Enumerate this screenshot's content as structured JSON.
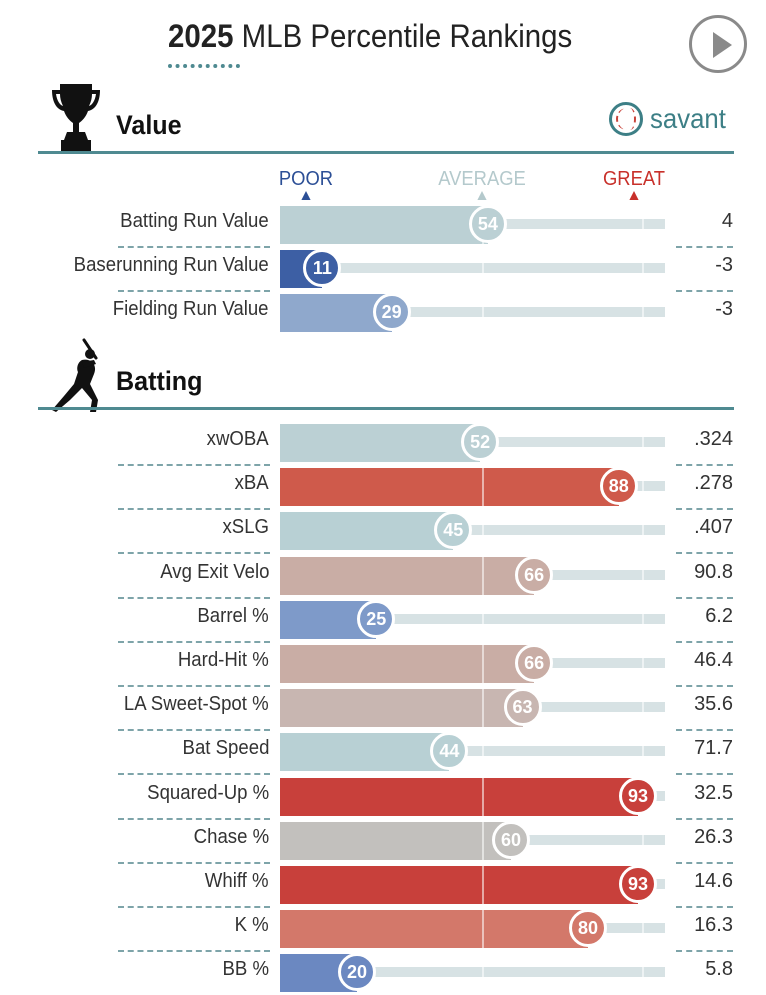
{
  "header": {
    "title_year": "2025",
    "title_rest": " MLB Percentile Rankings",
    "play_button": "play-icon"
  },
  "sections": {
    "value": {
      "title": "Value",
      "icon": "trophy-icon"
    },
    "batting": {
      "title": "Batting",
      "icon": "batter-icon"
    }
  },
  "brand": {
    "text": "savant",
    "icon": "baseball-icon",
    "color": "#3d7f86"
  },
  "scale": {
    "poor": "POOR",
    "average": "AVERAGE",
    "great": "GREAT"
  },
  "colors": {
    "accent": "#4f8a91",
    "poor": "#2c4f96",
    "great": "#c8302a",
    "track": "#d7e2e4"
  },
  "chart_data": {
    "type": "bar",
    "xlim": [
      0,
      100
    ],
    "series": [
      {
        "group": "Value",
        "rows": [
          {
            "metric": "Batting Run Value",
            "percentile": 54,
            "value": "4",
            "color": "#bbd0d4"
          },
          {
            "metric": "Baserunning Run Value",
            "percentile": 11,
            "value": "-3",
            "color": "#3d5fa4"
          },
          {
            "metric": "Fielding Run Value",
            "percentile": 29,
            "value": "-3",
            "color": "#8fa8cc"
          }
        ]
      },
      {
        "group": "Batting",
        "rows": [
          {
            "metric": "xwOBA",
            "percentile": 52,
            "value": ".324",
            "color": "#bbd0d4"
          },
          {
            "metric": "xBA",
            "percentile": 88,
            "value": ".278",
            "color": "#cf5a4b"
          },
          {
            "metric": "xSLG",
            "percentile": 45,
            "value": ".407",
            "color": "#b8d0d4"
          },
          {
            "metric": "Avg Exit Velo",
            "percentile": 66,
            "value": "90.8",
            "color": "#c9ada5"
          },
          {
            "metric": "Barrel %",
            "percentile": 25,
            "value": "6.2",
            "color": "#7e9ac9"
          },
          {
            "metric": "Hard-Hit %",
            "percentile": 66,
            "value": "46.4",
            "color": "#c9ada5"
          },
          {
            "metric": "LA Sweet-Spot %",
            "percentile": 63,
            "value": "35.6",
            "color": "#c8b6b1"
          },
          {
            "metric": "Bat Speed",
            "percentile": 44,
            "value": "71.7",
            "color": "#b8d0d4"
          },
          {
            "metric": "Squared-Up %",
            "percentile": 93,
            "value": "32.5",
            "color": "#c8403b"
          },
          {
            "metric": "Chase %",
            "percentile": 60,
            "value": "26.3",
            "color": "#c2c0bd"
          },
          {
            "metric": "Whiff %",
            "percentile": 93,
            "value": "14.6",
            "color": "#c8403b"
          },
          {
            "metric": "K %",
            "percentile": 80,
            "value": "16.3",
            "color": "#d3786a"
          },
          {
            "metric": "BB %",
            "percentile": 20,
            "value": "5.8",
            "color": "#6b88c1"
          }
        ]
      }
    ]
  }
}
